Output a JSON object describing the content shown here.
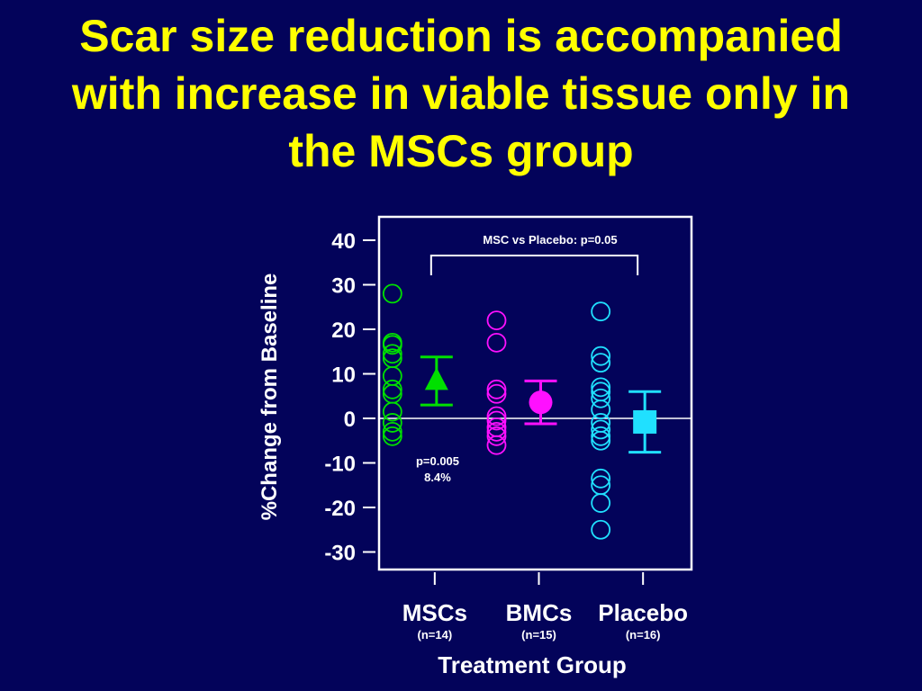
{
  "slide": {
    "title": "Scar size reduction is accompanied\nwith increase in viable tissue only in\nthe MSCs group"
  },
  "chart_data": {
    "type": "scatter",
    "ylabel": "%Change from Baseline",
    "xlabel": "Treatment Group",
    "ylim": [
      -30,
      40
    ],
    "yticks": [
      "40",
      "30",
      "20",
      "10",
      "0",
      "-10",
      "-20",
      "-30"
    ],
    "grid": false,
    "reference_line": 0,
    "groups": [
      {
        "name": "MSCs",
        "n_label": "(n=14)",
        "color": "#00e000",
        "marker": "triangle",
        "points": [
          28,
          17,
          16.5,
          14.5,
          13.5,
          9.5,
          6.5,
          5.5,
          1.5,
          -1,
          -3,
          -4
        ],
        "mean": 8.4,
        "err_low": 3,
        "err_high": 13.8
      },
      {
        "name": "BMCs",
        "n_label": "(n=15)",
        "color": "#ff10ff",
        "marker": "circle",
        "points": [
          22,
          17,
          6.5,
          5.5,
          0.5,
          -0.5,
          -2,
          -3,
          -4,
          -6
        ],
        "mean": 3.6,
        "err_low": -1.2,
        "err_high": 8.4
      },
      {
        "name": "Placebo",
        "n_label": "(n=16)",
        "color": "#20e0ff",
        "marker": "square",
        "points": [
          24,
          14,
          12.5,
          7,
          6,
          4.5,
          2,
          -1,
          -2.5,
          -4,
          -5,
          -13.5,
          -15,
          -19,
          -25
        ],
        "mean": -0.8,
        "err_low": -7.6,
        "err_high": 6
      }
    ],
    "annotations": {
      "bracket_label": "MSC vs Placebo: p=0.05",
      "msc_pvalue": "p=0.005",
      "msc_change": "8.4%"
    }
  }
}
